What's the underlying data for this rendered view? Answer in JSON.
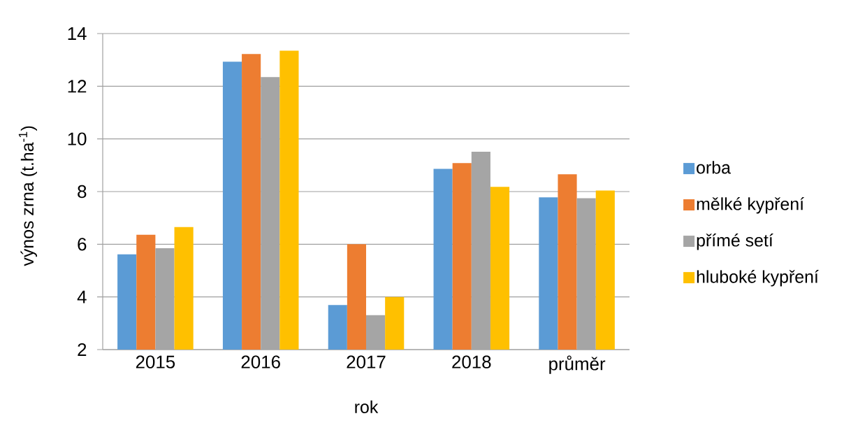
{
  "chart_data": {
    "type": "bar",
    "xlabel": "rok",
    "ylabel": "výnos zrna (t.ha$^{-1}$)",
    "categories": [
      "2015",
      "2016",
      "2017",
      "2018",
      "průměr"
    ],
    "series": [
      {
        "name": "orba",
        "color": "#5b9bd5",
        "values": [
          5.62,
          12.93,
          3.69,
          8.86,
          7.78
        ]
      },
      {
        "name": "mělké kypření",
        "color": "#ed7d31",
        "values": [
          6.36,
          13.22,
          6.0,
          9.08,
          8.66
        ]
      },
      {
        "name": "přímé setí",
        "color": "#a5a5a5",
        "values": [
          5.85,
          12.35,
          3.31,
          9.51,
          7.75
        ]
      },
      {
        "name": "hluboké kypření",
        "color": "#ffc000",
        "values": [
          6.65,
          13.35,
          4.0,
          8.18,
          8.04
        ]
      }
    ],
    "ylim": [
      2,
      14
    ],
    "yticks": [
      2,
      4,
      6,
      8,
      10,
      12,
      14
    ],
    "grid": "y",
    "legend": "right"
  }
}
